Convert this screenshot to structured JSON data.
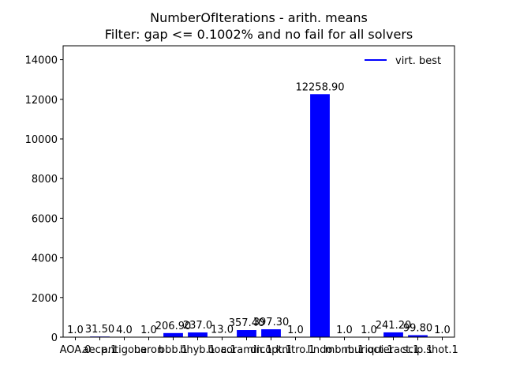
{
  "chart_data": {
    "type": "bar",
    "title": "NumberOfIterations - arith. means",
    "subtitle": "Filter: gap <= 0.1002% and no fail for all solvers",
    "xlabel": "",
    "ylabel": "",
    "ylim": [
      0,
      14700
    ],
    "yticks": [
      0,
      2000,
      4000,
      6000,
      8000,
      10000,
      12000,
      14000
    ],
    "categories": [
      "AOA.0",
      "aecp.1",
      "antigone",
      "baron",
      "bbb.1",
      "bhyb.1",
      "boa.1",
      "coramin.1",
      "dicopt.1",
      "knitro.1",
      "lindo",
      "mbnb.1",
      "muriqui.1",
      "octeract.1",
      "scip.1",
      "shot.1"
    ],
    "values": [
      1.0,
      31.5,
      4.0,
      1.0,
      206.9,
      237.0,
      13.0,
      357.4,
      397.3,
      1.0,
      12258.9,
      1.0,
      1.0,
      241.2,
      99.8,
      1.0
    ],
    "value_labels": [
      "1.0",
      "31.50",
      "4.0",
      "1.0",
      "206.90",
      "237.0",
      "13.0",
      "357.40",
      "397.30",
      "1.0",
      "12258.90",
      "1.0",
      "1.0",
      "241.20",
      "99.80",
      "1.0"
    ],
    "series": [
      {
        "name": "virt. best",
        "color": "#0000ff"
      }
    ],
    "legend_position": "top-right",
    "grid": false
  }
}
